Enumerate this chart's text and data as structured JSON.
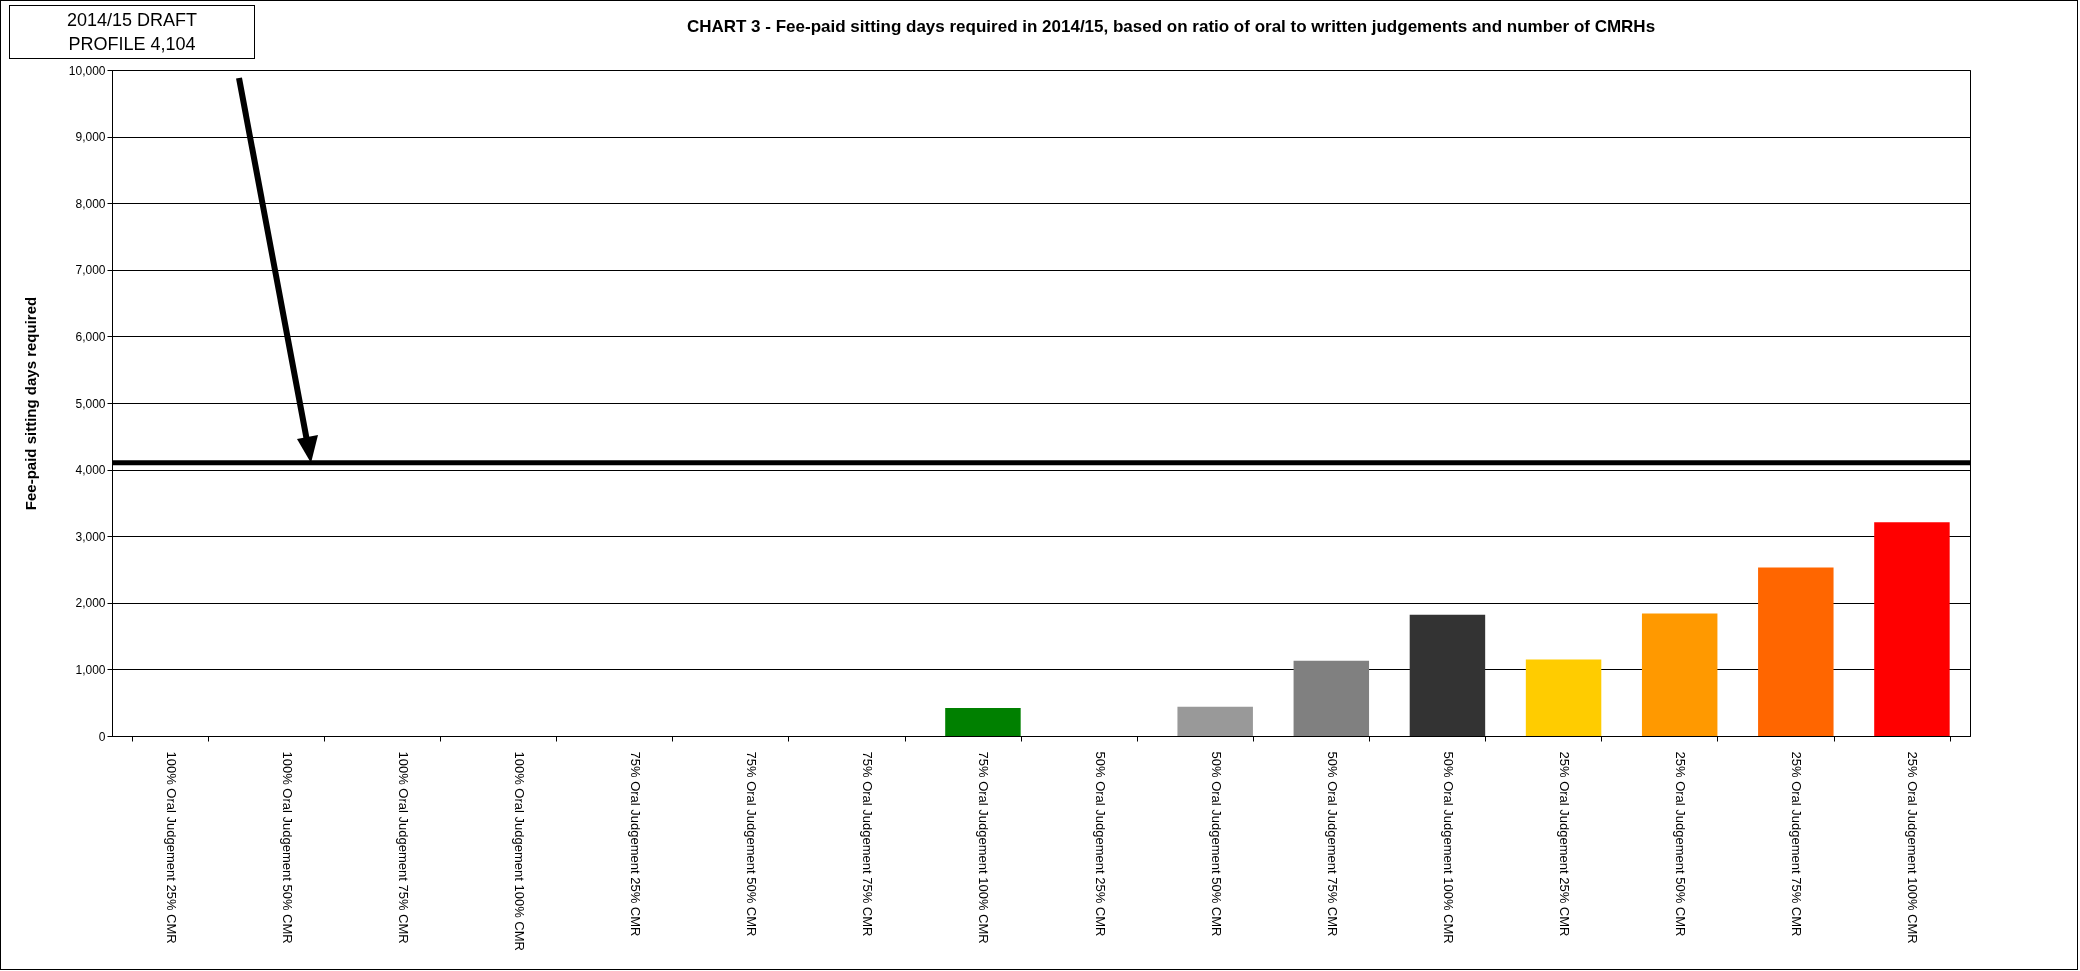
{
  "chart_data": {
    "type": "bar",
    "title": "CHART 3 - Fee-paid sitting days required in 2014/15, based on ratio of oral to written judgements and number of CMRHs",
    "ylabel": "Fee-paid sitting days required",
    "categories": [
      "100% Oral Judgement 25% CMR",
      "100% Oral Judgement 50% CMR",
      "100% Oral Judgement 75% CMR",
      "100% Oral Judgement 100% CMR",
      "75% Oral Judgement 25% CMR",
      "75% Oral Judgement 50% CMR",
      "75% Oral Judgement 75% CMR",
      "75% Oral Judgement 100% CMR",
      "50% Oral Judgement 25% CMR",
      "50% Oral Judgement 50% CMR",
      "50% Oral Judgement 75% CMR",
      "50% Oral Judgement 100% CMR",
      "25% Oral Judgement 25% CMR",
      "25% Oral Judgement 50% CMR",
      "25% Oral Judgement 75% CMR",
      "25% Oral Judgement 100% CMR"
    ],
    "values": [
      null,
      null,
      null,
      null,
      null,
      null,
      null,
      420,
      null,
      440,
      1130,
      1820,
      1150,
      1840,
      2530,
      3210
    ],
    "colors": [
      null,
      null,
      null,
      null,
      null,
      null,
      null,
      "#008000",
      null,
      "#999999",
      "#808080",
      "#333333",
      "#ffcc00",
      "#ff9900",
      "#ff6600",
      "#ff0000"
    ],
    "ylim": [
      0,
      10000
    ],
    "yticks": [
      0,
      {
        "value": 1000,
        "label": "1,000"
      },
      {
        "value": 2000,
        "label": "2,000"
      },
      {
        "value": 3000,
        "label": "3,000"
      },
      {
        "value": 4000,
        "label": "4,000"
      },
      {
        "value": 5000,
        "label": "5,000"
      },
      {
        "value": 6000,
        "label": "6,000"
      },
      {
        "value": 7000,
        "label": "7,000"
      },
      {
        "value": 8000,
        "label": "8,000"
      },
      {
        "value": 9000,
        "label": "9,000"
      },
      {
        "value": 10000,
        "label": "10,000"
      }
    ],
    "grid": "y",
    "ref_lines": [
      {
        "axis": "y",
        "value": 4104,
        "label": "2014/15 DRAFT PROFILE 4,104",
        "color": "#000000"
      }
    ]
  }
}
